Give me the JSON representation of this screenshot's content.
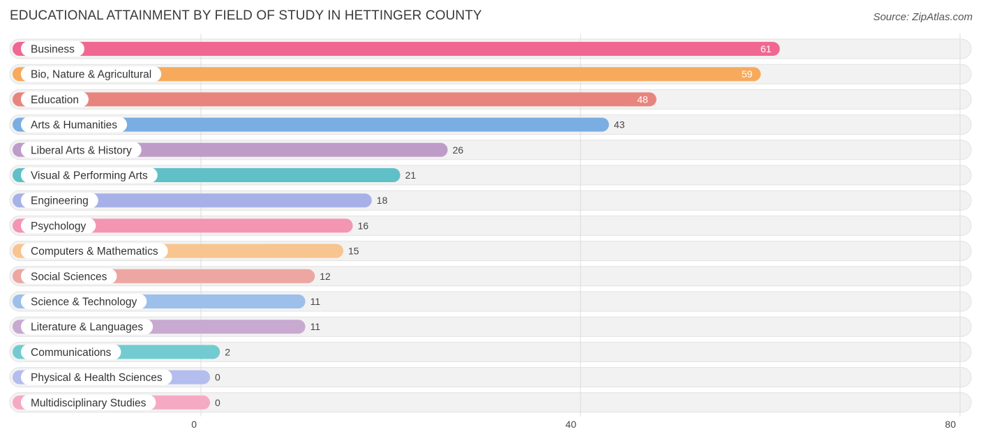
{
  "title": "EDUCATIONAL ATTAINMENT BY FIELD OF STUDY IN HETTINGER COUNTY",
  "source": "Source: ZipAtlas.com",
  "chart_data": {
    "type": "bar",
    "orientation": "horizontal",
    "categories": [
      "Business",
      "Bio, Nature & Agricultural",
      "Education",
      "Arts & Humanities",
      "Liberal Arts & History",
      "Visual & Performing Arts",
      "Engineering",
      "Psychology",
      "Computers & Mathematics",
      "Social Sciences",
      "Science & Technology",
      "Literature & Languages",
      "Communications",
      "Physical & Health Sciences",
      "Multidisciplinary Studies"
    ],
    "values": [
      61,
      59,
      48,
      43,
      26,
      21,
      18,
      16,
      15,
      12,
      11,
      11,
      2,
      0,
      0
    ],
    "colors": [
      "#f06892",
      "#f7a95c",
      "#e8847e",
      "#7aaee2",
      "#be9cc8",
      "#5fc0c7",
      "#a7b1e8",
      "#f495b3",
      "#f8c48f",
      "#eda6a2",
      "#9cc0ea",
      "#c8a9d0",
      "#72cbd0",
      "#b3bdee",
      "#f6a9c3"
    ],
    "xticks": [
      0,
      40,
      80
    ],
    "xlim": [
      0,
      80
    ],
    "grid": true,
    "xlabel": "",
    "ylabel": ""
  }
}
